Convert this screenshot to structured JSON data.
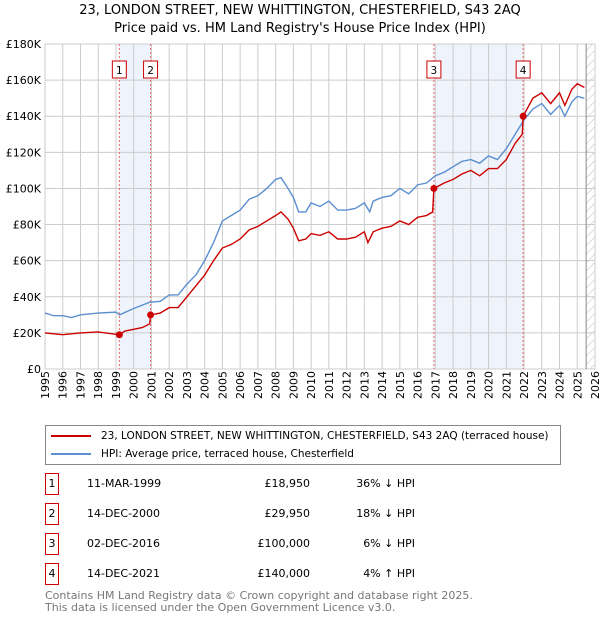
{
  "chart_data": {
    "type": "line",
    "title": "23, LONDON STREET, NEW WHITTINGTON, CHESTERFIELD, S43 2AQ",
    "subtitle": "Price paid vs. HM Land Registry's House Price Index (HPI)",
    "xlim": [
      1995,
      2026
    ],
    "ylim": [
      0,
      180000
    ],
    "x_ticks": [
      "1995",
      "1996",
      "1997",
      "1998",
      "1999",
      "2000",
      "2001",
      "2002",
      "2003",
      "2004",
      "2005",
      "2006",
      "2007",
      "2008",
      "2009",
      "2010",
      "2011",
      "2012",
      "2013",
      "2014",
      "2015",
      "2016",
      "2017",
      "2018",
      "2019",
      "2020",
      "2021",
      "2022",
      "2023",
      "2024",
      "2025",
      "2026"
    ],
    "y_ticks": [
      {
        "v": 0,
        "label": "£0"
      },
      {
        "v": 20000,
        "label": "£20K"
      },
      {
        "v": 40000,
        "label": "£40K"
      },
      {
        "v": 60000,
        "label": "£60K"
      },
      {
        "v": 80000,
        "label": "£80K"
      },
      {
        "v": 100000,
        "label": "£100K"
      },
      {
        "v": 120000,
        "label": "£120K"
      },
      {
        "v": 140000,
        "label": "£140K"
      },
      {
        "v": 160000,
        "label": "£160K"
      },
      {
        "v": 180000,
        "label": "£180K"
      }
    ],
    "grid": true,
    "series": [
      {
        "name": "23, LONDON STREET, NEW WHITTINGTON, CHESTERFIELD, S43 2AQ (terraced house)",
        "color": "#cc0000",
        "x": [
          1995,
          1996,
          1997,
          1998,
          1999.19,
          1999.5,
          2000,
          2000.5,
          2000.9,
          2000.95,
          2001.5,
          2002,
          2002.5,
          2003,
          2003.5,
          2004,
          2004.5,
          2005,
          2005.5,
          2006,
          2006.5,
          2007,
          2007.5,
          2008,
          2008.3,
          2008.7,
          2009,
          2009.3,
          2009.7,
          2010,
          2010.5,
          2011,
          2011.5,
          2012,
          2012.5,
          2013,
          2013.2,
          2013.5,
          2014,
          2014.5,
          2015,
          2015.5,
          2016,
          2016.5,
          2016.85,
          2016.92,
          2017.5,
          2018,
          2018.5,
          2019,
          2019.5,
          2020,
          2020.5,
          2021,
          2021.5,
          2021.9,
          2021.95,
          2022.5,
          2023,
          2023.5,
          2024,
          2024.3,
          2024.7,
          2025,
          2025.4
        ],
        "y": [
          20000,
          19000,
          20000,
          20500,
          18950,
          21000,
          22000,
          23000,
          25000,
          29950,
          31000,
          34000,
          34000,
          40000,
          46000,
          52000,
          60000,
          67000,
          69000,
          72000,
          77000,
          79000,
          82000,
          85000,
          87000,
          83000,
          78000,
          71000,
          72000,
          75000,
          74000,
          76000,
          72000,
          72000,
          73000,
          76000,
          70000,
          76000,
          78000,
          79000,
          82000,
          80000,
          84000,
          85000,
          87000,
          100000,
          103000,
          105000,
          108000,
          110000,
          107000,
          111000,
          111000,
          116000,
          125000,
          130000,
          140000,
          150000,
          153000,
          147000,
          153000,
          146000,
          155000,
          158000,
          156000
        ]
      },
      {
        "name": "HPI: Average price, terraced house, Chesterfield",
        "color": "#5b8fd0",
        "x": [
          1995,
          1995.5,
          1996,
          1996.5,
          1997,
          1998,
          1999,
          1999.2,
          2000,
          2000.9,
          2001.5,
          2002,
          2002.5,
          2003,
          2003.5,
          2004,
          2004.5,
          2005,
          2005.5,
          2006,
          2006.5,
          2007,
          2007.5,
          2008,
          2008.3,
          2008.7,
          2009,
          2009.3,
          2009.7,
          2010,
          2010.5,
          2011,
          2011.5,
          2012,
          2012.5,
          2013,
          2013.3,
          2013.5,
          2014,
          2014.5,
          2015,
          2015.5,
          2016,
          2016.5,
          2017,
          2017.5,
          2018,
          2018.5,
          2019,
          2019.5,
          2020,
          2020.5,
          2021,
          2021.5,
          2022,
          2022.5,
          2023,
          2023.5,
          2024,
          2024.3,
          2024.7,
          2025,
          2025.4
        ],
        "y": [
          31000,
          29500,
          29500,
          28500,
          30000,
          31000,
          31500,
          30000,
          33500,
          37000,
          37500,
          41000,
          41000,
          47000,
          52000,
          60000,
          70000,
          82000,
          85000,
          88000,
          94000,
          96000,
          100000,
          105000,
          106000,
          100000,
          95000,
          87000,
          87000,
          92000,
          90000,
          93000,
          88000,
          88000,
          89000,
          92000,
          87000,
          93000,
          95000,
          96000,
          100000,
          97000,
          102000,
          103000,
          107000,
          109000,
          112000,
          115000,
          116000,
          114000,
          118000,
          116000,
          122000,
          130000,
          138000,
          144000,
          147000,
          141000,
          146000,
          140000,
          148000,
          151000,
          150000
        ]
      }
    ],
    "sales": [
      {
        "n": "1",
        "x": 1999.19,
        "price": 18950,
        "date": "11-MAR-1999",
        "price_label": "£18,950",
        "hpi": "36% ↓ HPI"
      },
      {
        "n": "2",
        "x": 2000.95,
        "price": 29950,
        "date": "14-DEC-2000",
        "price_label": "£29,950",
        "hpi": "18% ↓ HPI"
      },
      {
        "n": "3",
        "x": 2016.92,
        "price": 100000,
        "date": "02-DEC-2016",
        "price_label": "£100,000",
        "hpi": "6% ↓ HPI"
      },
      {
        "n": "4",
        "x": 2021.95,
        "price": 140000,
        "date": "14-DEC-2021",
        "price_label": "£140,000",
        "hpi": "4% ↑ HPI"
      }
    ],
    "shaded_ranges": [
      [
        1999.19,
        2000.95
      ],
      [
        2016.92,
        2021.95
      ]
    ],
    "forecast_start": 2025.5
  },
  "footer": {
    "line1": "Contains HM Land Registry data © Crown copyright and database right 2025.",
    "line2": "This data is licensed under the Open Government Licence v3.0."
  }
}
